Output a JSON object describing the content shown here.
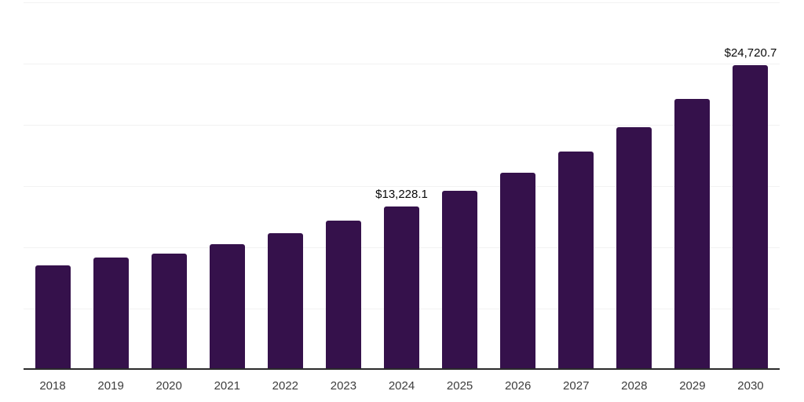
{
  "chart_data": {
    "type": "bar",
    "title": "",
    "xlabel": "",
    "ylabel": "",
    "categories": [
      "2018",
      "2019",
      "2020",
      "2021",
      "2022",
      "2023",
      "2024",
      "2025",
      "2026",
      "2027",
      "2028",
      "2029",
      "2030"
    ],
    "values": [
      8400,
      9040,
      9360,
      10120,
      11010,
      12030,
      13228.1,
      14510,
      15980,
      17700,
      19670,
      22020,
      24720.7
    ],
    "data_labels": [
      "",
      "",
      "",
      "",
      "",
      "",
      "$13,228.1",
      "",
      "",
      "",
      "",
      "",
      "$24,720.7"
    ],
    "ylim": [
      0,
      30000
    ],
    "gridline_interval": 5000,
    "grid": "horizontal-only",
    "legend_position": "none",
    "y_tick_labels_visible": false
  },
  "colors": {
    "bar": "#35114B",
    "gridline": "#f2f2f2",
    "axis_line": "#2b2b2b",
    "value_label": "#0a0a0a",
    "tick_label": "#3d3d3d",
    "background": "#ffffff"
  }
}
